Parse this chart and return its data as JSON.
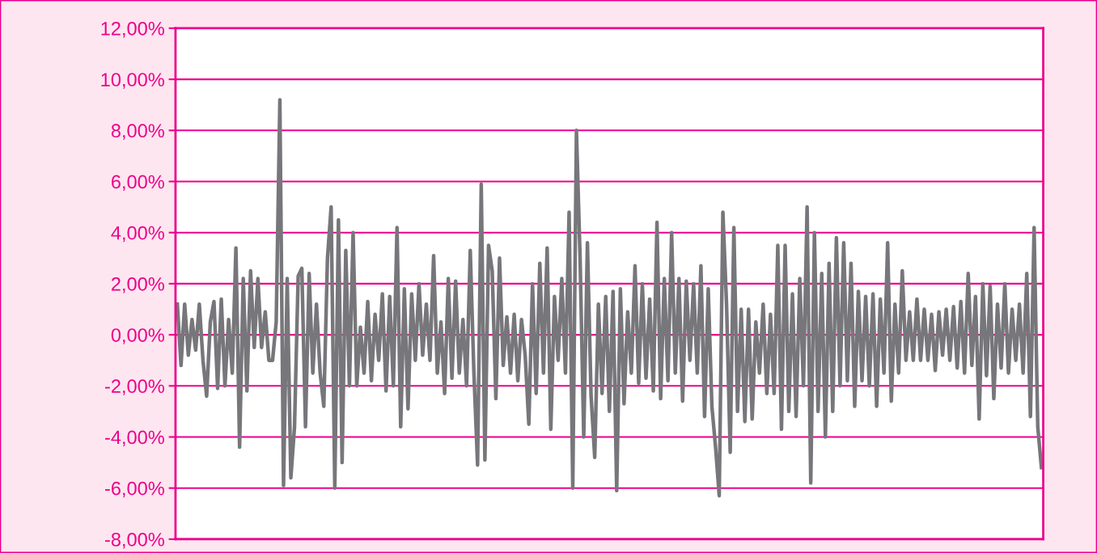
{
  "chart_data": {
    "type": "line",
    "color": "#77777b",
    "values": [
      1.2,
      -1.2,
      1.2,
      -0.8,
      0.6,
      -0.6,
      1.2,
      -1.0,
      -2.4,
      0.5,
      1.3,
      -2.1,
      1.4,
      -2.0,
      0.6,
      -1.5,
      3.4,
      -4.4,
      2.2,
      -2.2,
      2.5,
      -0.5,
      2.2,
      -0.5,
      0.9,
      -1.0,
      -1.0,
      0.5,
      9.2,
      -5.9,
      2.2,
      -5.6,
      -3.6,
      2.3,
      2.6,
      -3.6,
      2.4,
      -1.5,
      1.2,
      -1.5,
      -2.8,
      3.0,
      5.0,
      -6.0,
      4.5,
      -5.0,
      3.3,
      -2.0,
      4.0,
      -2.0,
      0.3,
      -1.5,
      1.3,
      -1.8,
      0.8,
      -1.0,
      1.6,
      -2.2,
      1.5,
      -2.0,
      4.2,
      -3.6,
      1.8,
      -2.9,
      1.6,
      -1.0,
      2.0,
      -0.8,
      1.2,
      -1.0,
      3.1,
      -1.5,
      0.5,
      -2.3,
      2.2,
      -1.7,
      2.1,
      -1.5,
      0.6,
      -2.0,
      3.3,
      -1.5,
      -5.1,
      5.9,
      -4.9,
      3.5,
      2.5,
      -2.5,
      3.0,
      -1.2,
      0.7,
      -1.5,
      0.8,
      -1.8,
      0.6,
      -0.8,
      -3.5,
      2.0,
      -2.3,
      2.8,
      -1.5,
      3.4,
      -3.7,
      1.5,
      -1.0,
      2.2,
      -1.5,
      4.8,
      -6.0,
      8.0,
      3.0,
      -4.0,
      3.6,
      -2.4,
      -4.8,
      1.2,
      -2.3,
      1.5,
      -3.0,
      1.7,
      -6.1,
      1.8,
      -2.7,
      0.9,
      -1.5,
      2.7,
      -1.9,
      2.0,
      -1.7,
      1.4,
      -2.2,
      4.4,
      -2.5,
      2.2,
      -1.8,
      4.0,
      -1.5,
      2.2,
      -2.6,
      2.1,
      -1.0,
      2.0,
      -1.5,
      2.7,
      -3.2,
      1.8,
      -2.8,
      -4.4,
      -6.3,
      4.8,
      1.2,
      -4.6,
      4.2,
      -3.0,
      1.0,
      -3.4,
      1.0,
      -3.3,
      0.5,
      -1.5,
      1.2,
      -2.3,
      0.8,
      -2.3,
      3.5,
      -3.7,
      3.5,
      -3.0,
      1.6,
      -3.2,
      2.2,
      -2.0,
      5.0,
      -5.8,
      4.0,
      -3.0,
      2.4,
      -4.0,
      2.8,
      -3.0,
      3.8,
      -2.0,
      3.6,
      -1.8,
      2.8,
      -2.8,
      1.7,
      -1.8,
      1.5,
      -2.0,
      1.6,
      -2.8,
      1.4,
      -1.5,
      3.6,
      -2.6,
      1.2,
      -1.5,
      2.5,
      -1.0,
      0.9,
      -1.0,
      1.4,
      -1.0,
      1.0,
      -1.0,
      0.8,
      -1.4,
      0.9,
      -0.8,
      1.0,
      -1.0,
      1.1,
      -1.3,
      1.3,
      -1.5,
      2.4,
      -1.2,
      1.5,
      -3.3,
      2.0,
      -1.6,
      1.9,
      -2.5,
      1.2,
      -1.3,
      2.0,
      -1.5,
      1.0,
      -1.0,
      1.2,
      -1.5,
      2.4,
      -3.2,
      4.2,
      -3.6,
      -5.2
    ],
    "ylim": [
      -8,
      12
    ],
    "yticks": [
      {
        "value": -8,
        "label": "-8,00%"
      },
      {
        "value": -6,
        "label": "-6,00%"
      },
      {
        "value": -4,
        "label": "-4,00%"
      },
      {
        "value": -2,
        "label": "-2,00%"
      },
      {
        "value": 0,
        "label": "0,00%"
      },
      {
        "value": 2,
        "label": "2,00%"
      },
      {
        "value": 4,
        "label": "4,00%"
      },
      {
        "value": 6,
        "label": "6,00%"
      },
      {
        "value": 8,
        "label": "8,00%"
      },
      {
        "value": 10,
        "label": "10,00%"
      },
      {
        "value": 12,
        "label": "12,00%"
      }
    ],
    "grid": "y",
    "tick_labels": "y",
    "marker": "none",
    "line_style": "solid",
    "legend": false
  }
}
